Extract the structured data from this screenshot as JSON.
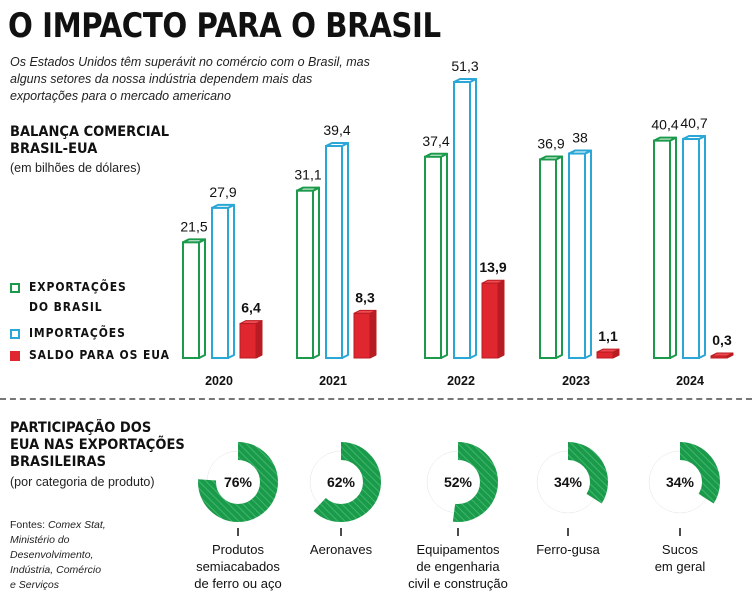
{
  "title": "O IMPACTO PARA O BRASIL",
  "subtitle": "Os Estados Unidos têm superávit no comércio com o Brasil, mas alguns setores da nossa indústria dependem mais das exportações para o mercado americano",
  "colors": {
    "exports": "#1a9a4a",
    "imports": "#2aa7d6",
    "balance": "#e0262e",
    "donut": "#1a9a4a",
    "donut_track": "#e3e3e3"
  },
  "balance_section": {
    "title_line1": "BALANÇA COMERCIAL",
    "title_line2": "BRASIL-EUA",
    "note": "(em bilhões de dólares)",
    "legend": {
      "exports_line1": "EXPORTAÇÕES",
      "exports_line2": "DO BRASIL",
      "imports": "IMPORTAÇÕES",
      "balance": "SALDO PARA OS EUA"
    }
  },
  "share_section": {
    "title_line1": "PARTICIPAÇÃO DOS",
    "title_line2": "EUA NAS EXPORTAÇÕES",
    "title_line3": "BRASILEIRAS",
    "note": "(por categoria de produto)"
  },
  "sources": {
    "prefix": "Fontes:",
    "line1": "Comex Stat,",
    "line2": "Ministério do",
    "line3": "Desenvolvimento,",
    "line4": "Indústria, Comércio",
    "line5": "e Serviços"
  },
  "chart_data": [
    {
      "type": "bar",
      "title": "BALANÇA COMERCIAL BRASIL-EUA",
      "ylabel": "(em bilhões de dólares)",
      "categories": [
        "2020",
        "2021",
        "2022",
        "2023",
        "2024"
      ],
      "series": [
        {
          "name": "EXPORTAÇÕES DO BRASIL",
          "values": [
            21.5,
            31.1,
            37.4,
            36.9,
            40.4
          ],
          "labels": [
            "21,5",
            "31,1",
            "37,4",
            "36,9",
            "40,4"
          ]
        },
        {
          "name": "IMPORTAÇÕES",
          "values": [
            27.9,
            39.4,
            51.3,
            38,
            40.7
          ],
          "labels": [
            "27,9",
            "39,4",
            "51,3",
            "38",
            "40,7"
          ]
        },
        {
          "name": "SALDO PARA OS EUA",
          "values": [
            6.4,
            8.3,
            13.9,
            1.1,
            0.3
          ],
          "labels": [
            "6,4",
            "8,3",
            "13,9",
            "1,1",
            "0,3"
          ]
        }
      ],
      "ylim": [
        0,
        51.3
      ]
    },
    {
      "type": "pie",
      "title": "PARTICIPAÇÃO DOS EUA NAS EXPORTAÇÕES BRASILEIRAS",
      "items": [
        {
          "category_line1": "Produtos",
          "category_line2": "semiacabados",
          "category_line3": "de ferro ou aço",
          "value": 76,
          "label": "76%"
        },
        {
          "category_line1": "Aeronaves",
          "category_line2": "",
          "category_line3": "",
          "value": 62,
          "label": "62%"
        },
        {
          "category_line1": "Equipamentos",
          "category_line2": "de engenharia",
          "category_line3": "civil e construção",
          "value": 52,
          "label": "52%"
        },
        {
          "category_line1": "Ferro-gusa",
          "category_line2": "",
          "category_line3": "",
          "value": 34,
          "label": "34%"
        },
        {
          "category_line1": "Sucos",
          "category_line2": "em geral",
          "category_line3": "",
          "value": 34,
          "label": "34%"
        }
      ]
    }
  ]
}
